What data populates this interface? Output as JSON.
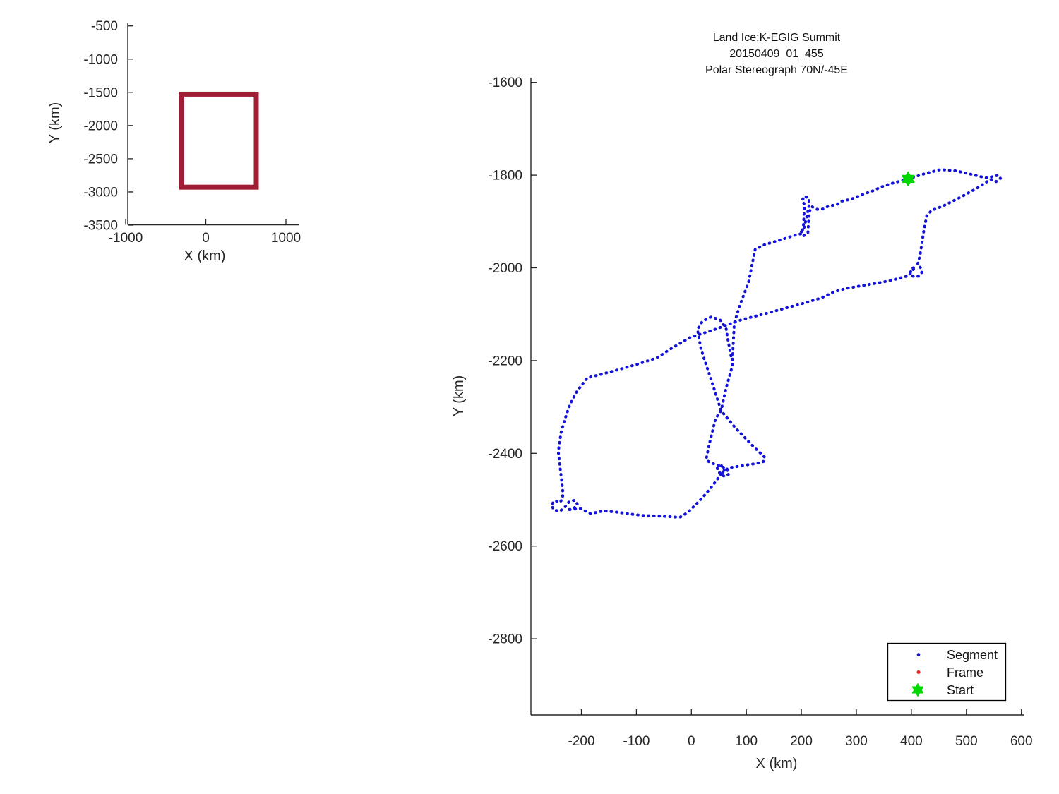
{
  "figure": {
    "background": "#ffffff"
  },
  "colors": {
    "track_blue": "#1212d9",
    "frame_red": "#ee2020",
    "start_green": "#00d800",
    "bounds_maroon": "#a11d35",
    "axis_gray": "#262626"
  },
  "chart_data": [
    {
      "id": "overview-plot",
      "type": "line",
      "xlabel": "X (km)",
      "ylabel": "Y (km)",
      "x_ticks": [
        -1000,
        0,
        1000
      ],
      "y_ticks": [
        -500,
        -1000,
        -1500,
        -2000,
        -2500,
        -3000,
        -3500
      ],
      "xlim": [
        -1000,
        1160
      ],
      "ylim": [
        -3500,
        -470
      ],
      "grid": false,
      "series": [
        {
          "name": "bounds-rectangle",
          "style": "thick-solid",
          "color": "#a11d35",
          "rect": {
            "x1": -300,
            "y1": -2928,
            "x2": 630,
            "y2": -1528
          }
        }
      ]
    },
    {
      "id": "flight-track-plot",
      "type": "line",
      "title_lines": [
        "Land Ice:K-EGIG Summit",
        "20150409_01_455",
        "Polar Stereograph 70N/-45E"
      ],
      "xlabel": "X (km)",
      "ylabel": "Y (km)",
      "x_ticks": [
        -200,
        -100,
        0,
        100,
        200,
        300,
        400,
        500,
        600
      ],
      "y_ticks": [
        -1600,
        -1800,
        -2000,
        -2200,
        -2400,
        -2600,
        -2800
      ],
      "xlim": [
        -293,
        603
      ],
      "ylim": [
        -2964,
        -1590
      ],
      "grid": false,
      "legend": {
        "position": "lower-right",
        "entries": [
          "Segment",
          "Frame",
          "Start"
        ]
      },
      "series": [
        {
          "name": "Segment",
          "style": "dotted",
          "color": "#1212d9",
          "points": [
            [
              72,
              -2190
            ],
            [
              66,
              -2152
            ],
            [
              63,
              -2130
            ],
            [
              52,
              -2112
            ],
            [
              36,
              -2106
            ],
            [
              20,
              -2115
            ],
            [
              11,
              -2133
            ],
            [
              17,
              -2172
            ],
            [
              24,
              -2199
            ],
            [
              37,
              -2245
            ],
            [
              54,
              -2308
            ],
            [
              80,
              -2345
            ],
            [
              110,
              -2382
            ],
            [
              133,
              -2408
            ],
            [
              131,
              -2418
            ],
            [
              118,
              -2422
            ],
            [
              100,
              -2425
            ],
            [
              80,
              -2429
            ],
            [
              68,
              -2431
            ],
            [
              60,
              -2438
            ],
            [
              54,
              -2446
            ],
            [
              61,
              -2450
            ],
            [
              69,
              -2444
            ],
            [
              64,
              -2433
            ],
            [
              50,
              -2426
            ],
            [
              33,
              -2420
            ],
            [
              27,
              -2412
            ],
            [
              33,
              -2378
            ],
            [
              44,
              -2325
            ],
            [
              54,
              -2308
            ],
            [
              63,
              -2260
            ],
            [
              74,
              -2214
            ],
            [
              78,
              -2119
            ],
            [
              88,
              -2081
            ],
            [
              104,
              -2031
            ],
            [
              116,
              -1960
            ],
            [
              133,
              -1950
            ],
            [
              161,
              -1940
            ],
            [
              190,
              -1929
            ],
            [
              201,
              -1926
            ],
            [
              204,
              -1906
            ],
            [
              205,
              -1879
            ],
            [
              206,
              -1864
            ],
            [
              201,
              -1855
            ],
            [
              206,
              -1845
            ],
            [
              214,
              -1851
            ],
            [
              214,
              -1866
            ],
            [
              209,
              -1894
            ],
            [
              205,
              -1913
            ],
            [
              200,
              -1922
            ],
            [
              204,
              -1931
            ],
            [
              212,
              -1924
            ],
            [
              213,
              -1903
            ],
            [
              215,
              -1878
            ],
            [
              219,
              -1868
            ],
            [
              229,
              -1874
            ],
            [
              240,
              -1873
            ],
            [
              249,
              -1867
            ],
            [
              264,
              -1864
            ],
            [
              274,
              -1856
            ],
            [
              290,
              -1852
            ],
            [
              313,
              -1841
            ],
            [
              330,
              -1834
            ],
            [
              344,
              -1826
            ],
            [
              361,
              -1819
            ],
            [
              373,
              -1815
            ],
            [
              394,
              -1808
            ],
            [
              424,
              -1797
            ],
            [
              453,
              -1788
            ],
            [
              482,
              -1791
            ],
            [
              508,
              -1798
            ],
            [
              536,
              -1806
            ],
            [
              549,
              -1803
            ],
            [
              558,
              -1800
            ],
            [
              562,
              -1807
            ],
            [
              554,
              -1814
            ],
            [
              544,
              -1809
            ],
            [
              521,
              -1827
            ],
            [
              492,
              -1846
            ],
            [
              457,
              -1867
            ],
            [
              437,
              -1876
            ],
            [
              428,
              -1887
            ],
            [
              422,
              -1925
            ],
            [
              416,
              -1971
            ],
            [
              411,
              -1994
            ],
            [
              417,
              -2000
            ],
            [
              419,
              -2010
            ],
            [
              413,
              -2018
            ],
            [
              404,
              -2019
            ],
            [
              398,
              -2012
            ],
            [
              400,
              -2002
            ],
            [
              407,
              -1998
            ],
            [
              395,
              -2017
            ],
            [
              370,
              -2025
            ],
            [
              347,
              -2031
            ],
            [
              322,
              -2036
            ],
            [
              283,
              -2044
            ],
            [
              261,
              -2051
            ],
            [
              236,
              -2065
            ],
            [
              205,
              -2076
            ],
            [
              177,
              -2085
            ],
            [
              140,
              -2097
            ],
            [
              91,
              -2112
            ],
            [
              40,
              -2134
            ],
            [
              -2,
              -2150
            ],
            [
              -34,
              -2172
            ],
            [
              -63,
              -2194
            ],
            [
              -93,
              -2206
            ],
            [
              -128,
              -2218
            ],
            [
              -162,
              -2229
            ],
            [
              -189,
              -2237
            ],
            [
              -208,
              -2266
            ],
            [
              -221,
              -2295
            ],
            [
              -231,
              -2330
            ],
            [
              -237,
              -2355
            ],
            [
              -242,
              -2396
            ],
            [
              -238,
              -2438
            ],
            [
              -234,
              -2478
            ],
            [
              -234,
              -2497
            ],
            [
              -239,
              -2506
            ],
            [
              -248,
              -2502
            ],
            [
              -255,
              -2511
            ],
            [
              -250,
              -2522
            ],
            [
              -239,
              -2525
            ],
            [
              -230,
              -2516
            ],
            [
              -222,
              -2504
            ],
            [
              -212,
              -2501
            ],
            [
              -207,
              -2510
            ],
            [
              -214,
              -2519
            ],
            [
              -226,
              -2522
            ],
            [
              -202,
              -2519
            ],
            [
              -183,
              -2530
            ],
            [
              -160,
              -2524
            ],
            [
              -134,
              -2527
            ],
            [
              -110,
              -2531
            ],
            [
              -89,
              -2534
            ],
            [
              -44,
              -2536
            ],
            [
              -21,
              -2538
            ],
            [
              -6,
              -2527
            ],
            [
              10,
              -2508
            ],
            [
              25,
              -2489
            ],
            [
              39,
              -2469
            ],
            [
              52,
              -2448
            ],
            [
              60,
              -2436
            ],
            [
              55,
              -2427
            ],
            [
              47,
              -2431
            ],
            [
              49,
              -2441
            ],
            [
              60,
              -2445
            ]
          ]
        },
        {
          "name": "Frame",
          "style": "dotted",
          "color": "#ee2020",
          "points": []
        },
        {
          "name": "Start",
          "style": "marker-hexagram",
          "color": "#00d800",
          "points": [
            [
              394,
              -1808
            ]
          ]
        }
      ]
    }
  ]
}
